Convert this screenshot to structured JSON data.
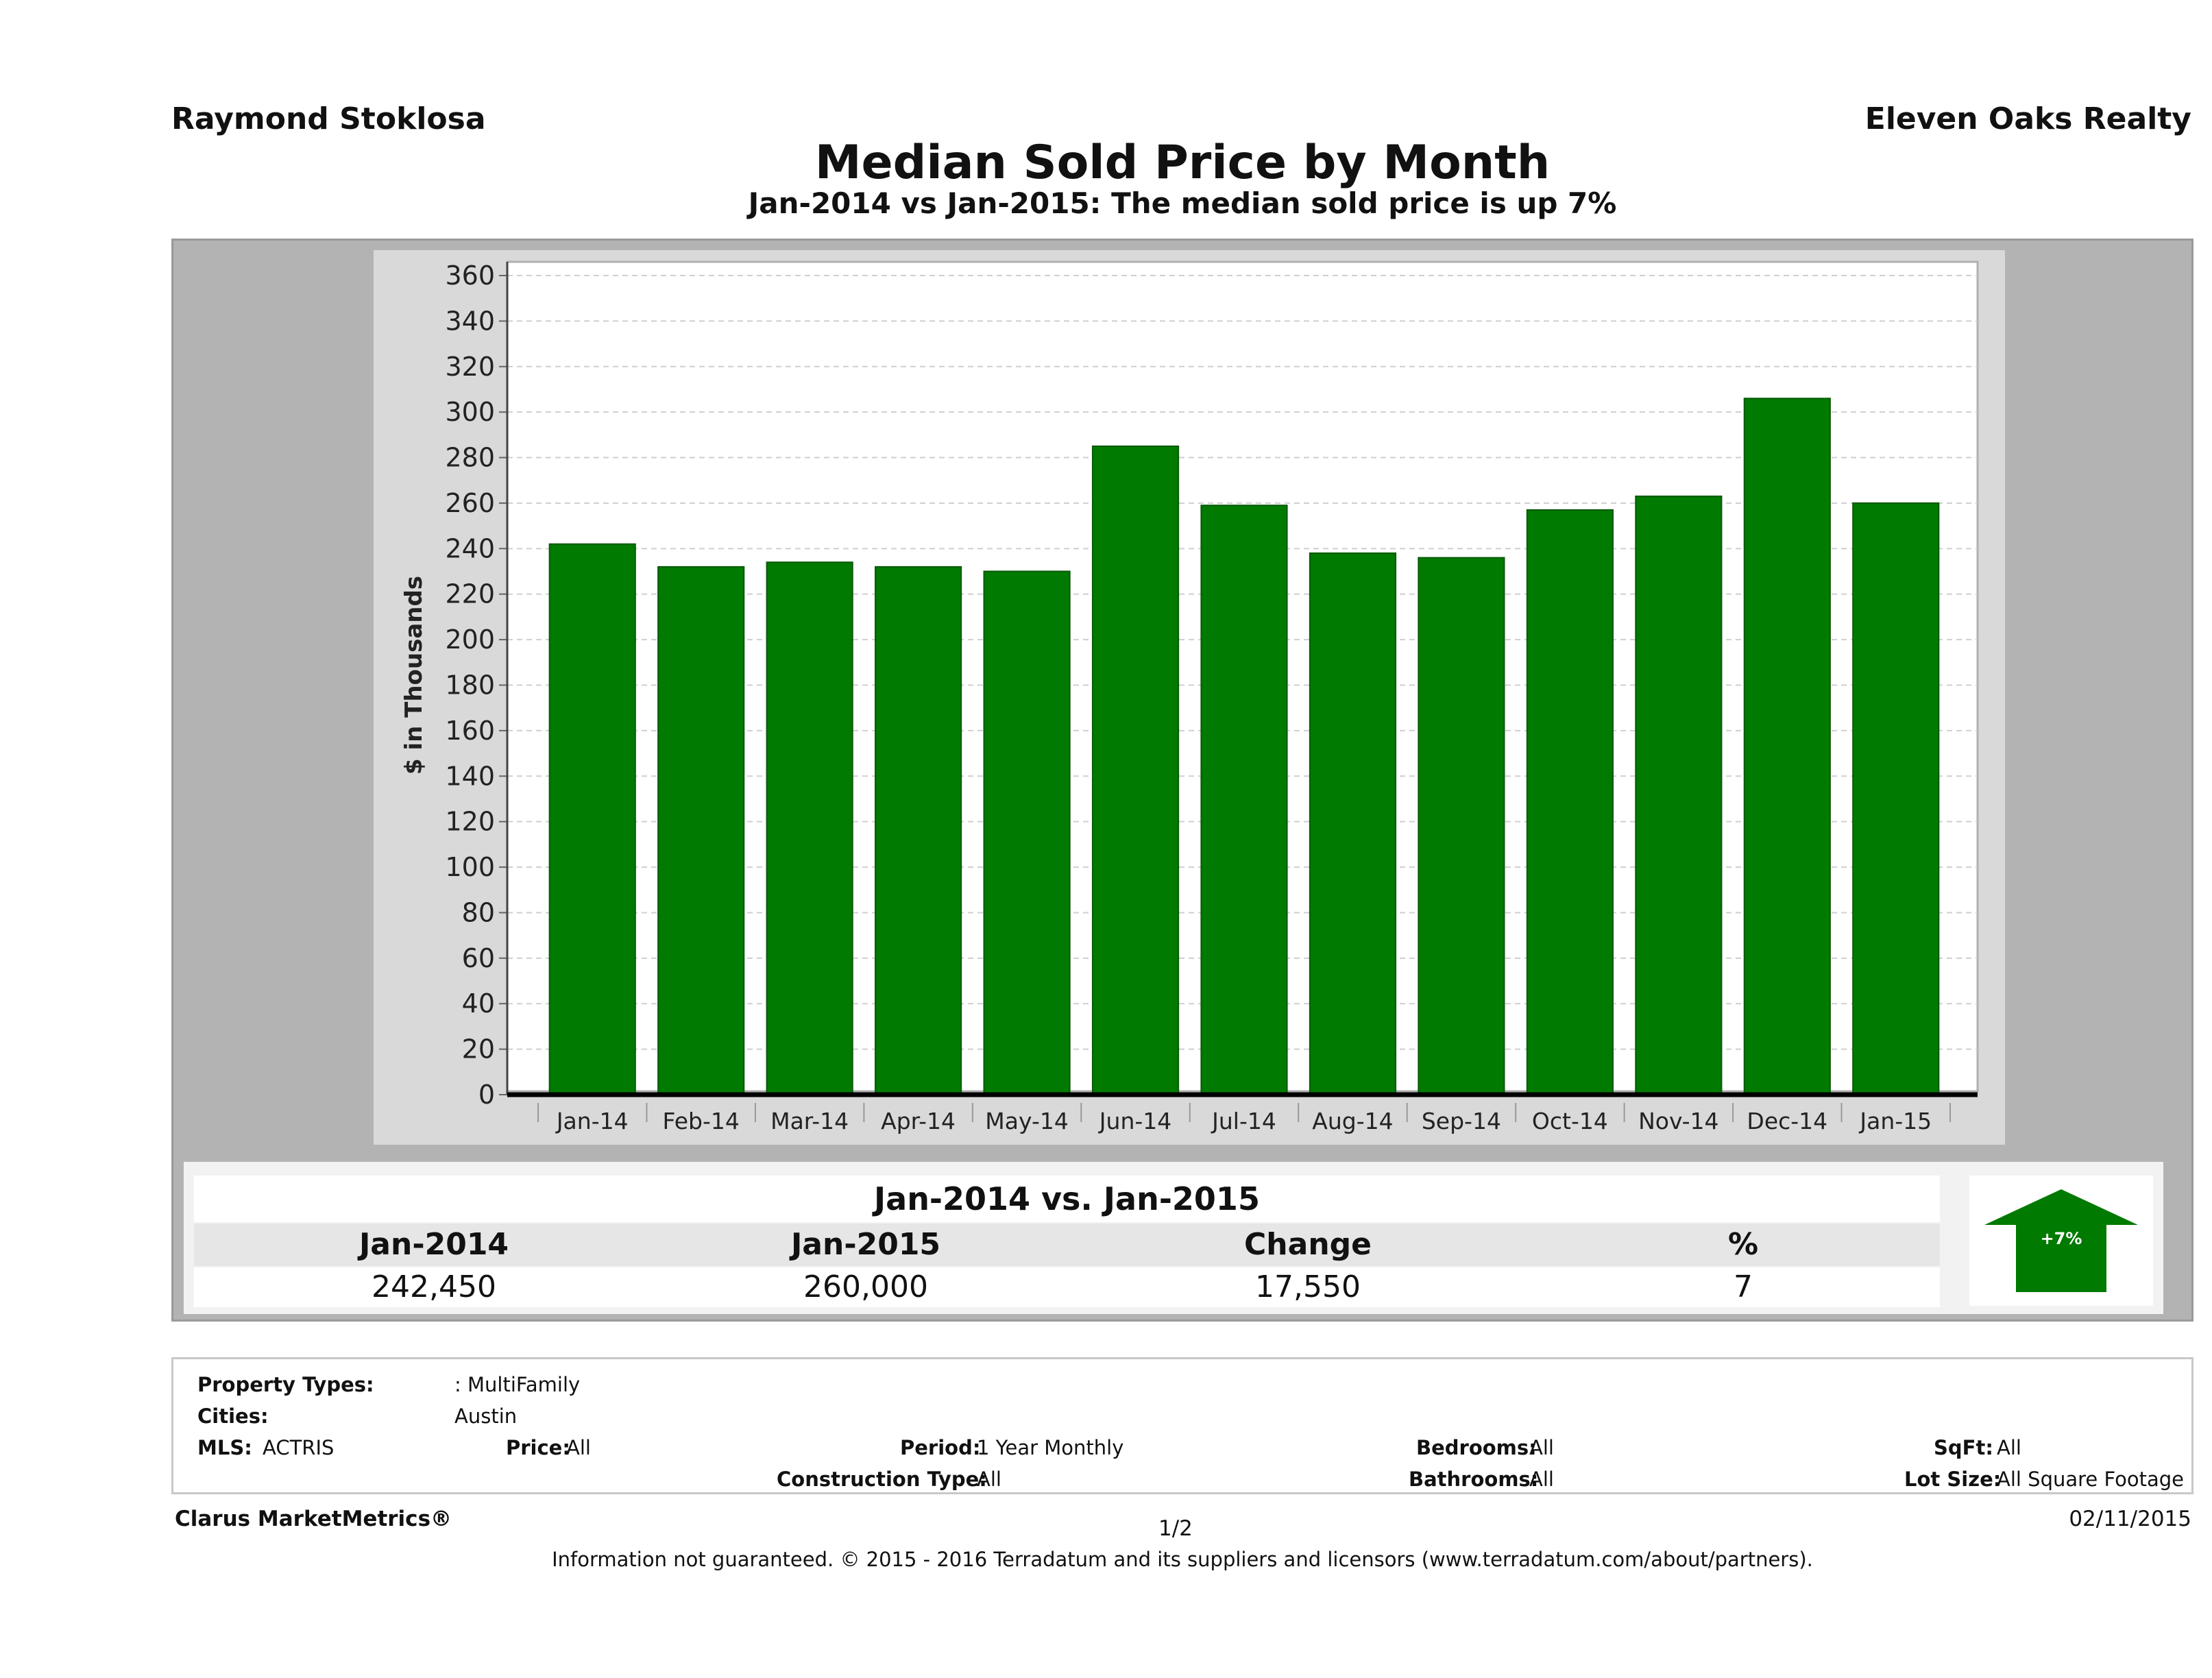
{
  "header": {
    "agent": "Raymond Stoklosa",
    "brokerage": "Eleven Oaks Realty",
    "title": "Median Sold Price by Month",
    "subtitle": "Jan-2014 vs Jan-2015: The median sold price is up 7%"
  },
  "chart_data": {
    "type": "bar",
    "title": "",
    "xlabel": "",
    "ylabel": "$ in Thousands",
    "categories": [
      "Jan-14",
      "Feb-14",
      "Mar-14",
      "Apr-14",
      "May-14",
      "Jun-14",
      "Jul-14",
      "Aug-14",
      "Sep-14",
      "Oct-14",
      "Nov-14",
      "Dec-14",
      "Jan-15"
    ],
    "values": [
      242,
      232,
      234,
      232,
      230,
      285,
      259,
      238,
      236,
      257,
      263,
      306,
      260
    ],
    "ylim": [
      0,
      360
    ],
    "yticks": [
      "0",
      "20",
      "40",
      "60",
      "80",
      "100",
      "120",
      "140",
      "160",
      "180",
      "200",
      "220",
      "240",
      "260",
      "280",
      "300",
      "320",
      "340",
      "360"
    ],
    "grid": true,
    "bar_color": "#007a00"
  },
  "comparison": {
    "title": "Jan-2014 vs. Jan-2015",
    "headers": [
      "Jan-2014",
      "Jan-2015",
      "Change",
      "%"
    ],
    "values": [
      "242,450",
      "260,000",
      "17,550",
      "7"
    ],
    "badge": "+7%",
    "badge_color": "#007a00"
  },
  "criteria": {
    "property_types_label": "Property Types:",
    "property_types_value": ": MultiFamily",
    "cities_label": "Cities:",
    "cities_value": "Austin",
    "mls_label": "MLS:",
    "mls_value": "ACTRIS",
    "price_label": "Price:",
    "price_value": "All",
    "period_label": "Period:",
    "period_value": "1 Year Monthly",
    "construction_label": "Construction Type:",
    "construction_value": "All",
    "bedrooms_label": "Bedrooms:",
    "bedrooms_value": "All",
    "bathrooms_label": "Bathrooms:",
    "bathrooms_value": "All",
    "sqft_label": "SqFt:",
    "sqft_value": "All",
    "lot_label": "Lot Size:",
    "lot_value": "All Square Footage"
  },
  "footer": {
    "product": "Clarus MarketMetrics®",
    "page": "1/2",
    "date": "02/11/2015",
    "disclaimer": "Information not guaranteed. © 2015 - 2016 Terradatum and its suppliers and licensors (www.terradatum.com/about/partners)."
  }
}
